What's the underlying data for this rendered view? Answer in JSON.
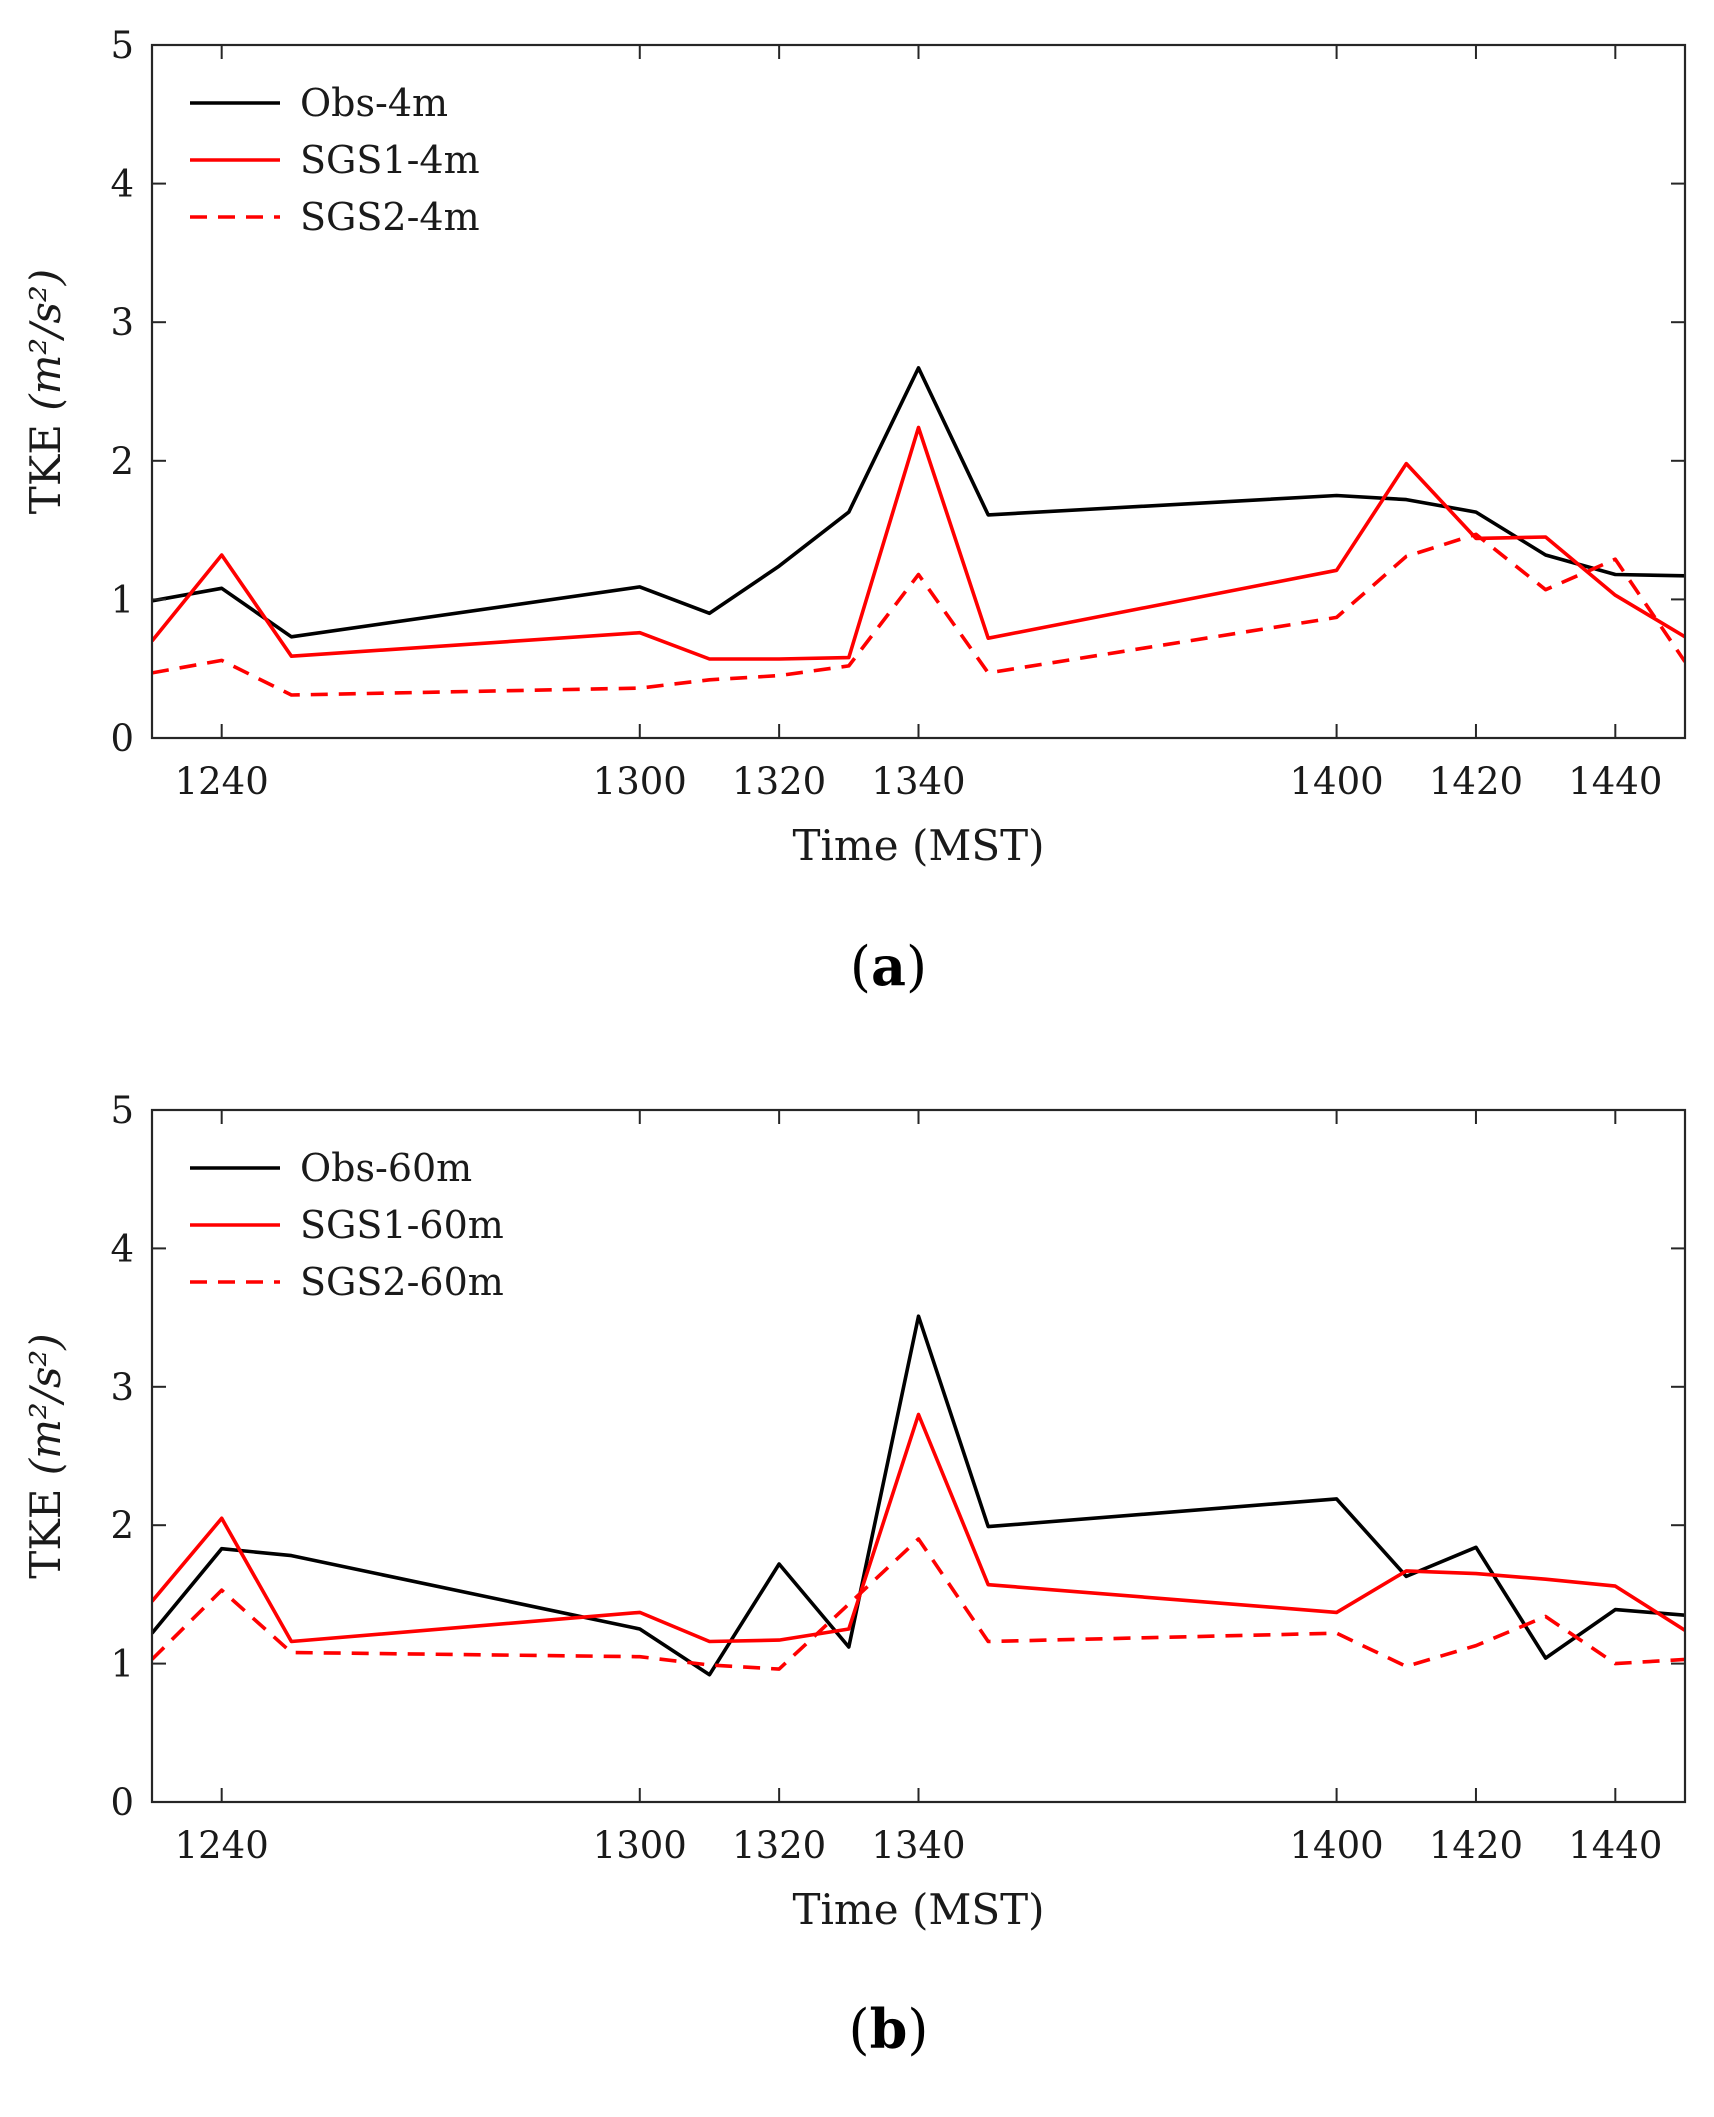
{
  "chart_data": [
    {
      "type": "line",
      "panel_label": "a",
      "xlabel": "Time (MST)",
      "ylabel_text": "TKE",
      "ylabel_units": "(m²/s²)",
      "xlim": [
        1230,
        1450
      ],
      "ylim": [
        0,
        5
      ],
      "x_tick_values": [
        1240,
        1300,
        1320,
        1340,
        1400,
        1420,
        1440
      ],
      "x_tick_labels": [
        "1240",
        "1300",
        "1320",
        "1340",
        "1400",
        "1420",
        "1440"
      ],
      "y_ticks": [
        0,
        1,
        2,
        3,
        4,
        5
      ],
      "legend_position": "top-left",
      "grid": false,
      "x": [
        1230,
        1240,
        1250,
        1300,
        1310,
        1320,
        1330,
        1340,
        1350,
        1400,
        1410,
        1420,
        1430,
        1440,
        1450
      ],
      "series": [
        {
          "name": "Obs-4m",
          "color": "#000000",
          "dash": "solid",
          "values": [
            0.99,
            1.08,
            0.73,
            1.09,
            0.9,
            1.24,
            1.63,
            2.67,
            1.61,
            1.75,
            1.72,
            1.63,
            1.32,
            1.18,
            1.17
          ]
        },
        {
          "name": "SGS1-4m",
          "color": "#ff0000",
          "dash": "solid",
          "values": [
            0.7,
            1.32,
            0.59,
            0.76,
            0.57,
            0.57,
            0.58,
            2.24,
            0.72,
            1.21,
            1.98,
            1.44,
            1.45,
            1.03,
            0.73
          ]
        },
        {
          "name": "SGS2-4m",
          "color": "#ff0000",
          "dash": "dashed",
          "values": [
            0.47,
            0.56,
            0.31,
            0.36,
            0.42,
            0.45,
            0.52,
            1.18,
            0.47,
            0.87,
            1.31,
            1.47,
            1.07,
            1.29,
            0.55
          ]
        }
      ]
    },
    {
      "type": "line",
      "panel_label": "b",
      "xlabel": "Time (MST)",
      "ylabel_text": "TKE",
      "ylabel_units": "(m²/s²)",
      "xlim": [
        1230,
        1450
      ],
      "ylim": [
        0,
        5
      ],
      "x_tick_values": [
        1240,
        1300,
        1320,
        1340,
        1400,
        1420,
        1440
      ],
      "x_tick_labels": [
        "1240",
        "1300",
        "1320",
        "1340",
        "1400",
        "1420",
        "1440"
      ],
      "y_ticks": [
        0,
        1,
        2,
        3,
        4,
        5
      ],
      "legend_position": "top-left",
      "grid": false,
      "x": [
        1230,
        1240,
        1250,
        1300,
        1310,
        1320,
        1330,
        1340,
        1350,
        1400,
        1410,
        1420,
        1430,
        1440,
        1450
      ],
      "series": [
        {
          "name": "Obs-60m",
          "color": "#000000",
          "dash": "solid",
          "values": [
            1.22,
            1.83,
            1.78,
            1.25,
            0.92,
            1.72,
            1.12,
            3.51,
            1.99,
            2.19,
            1.63,
            1.84,
            1.04,
            1.39,
            1.35
          ]
        },
        {
          "name": "SGS1-60m",
          "color": "#ff0000",
          "dash": "solid",
          "values": [
            1.45,
            2.05,
            1.16,
            1.37,
            1.16,
            1.17,
            1.25,
            2.8,
            1.57,
            1.37,
            1.67,
            1.65,
            1.61,
            1.56,
            1.24
          ]
        },
        {
          "name": "SGS2-60m",
          "color": "#ff0000",
          "dash": "dashed",
          "values": [
            1.03,
            1.53,
            1.08,
            1.05,
            0.99,
            0.96,
            1.43,
            1.9,
            1.16,
            1.22,
            0.98,
            1.13,
            1.34,
            1.0,
            1.03
          ]
        }
      ]
    }
  ]
}
